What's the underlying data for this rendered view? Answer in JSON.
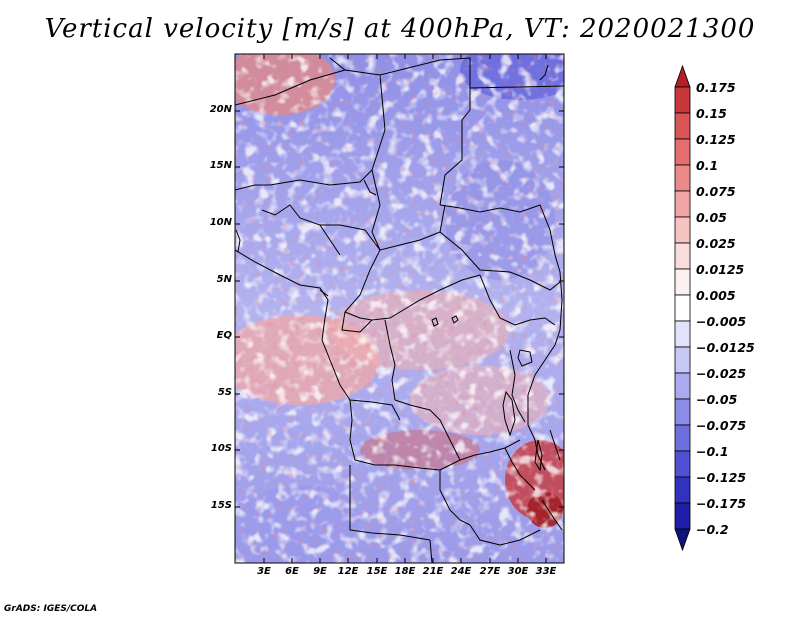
{
  "title": "Vertical velocity [m/s] at 400hPa, VT: 2020021300",
  "map": {
    "lat_labels": [
      "20N",
      "15N",
      "10N",
      "5N",
      "EQ",
      "5S",
      "10S",
      "15S"
    ],
    "lon_labels": [
      "3E",
      "6E",
      "9E",
      "12E",
      "15E",
      "18E",
      "21E",
      "24E",
      "27E",
      "30E",
      "33E"
    ]
  },
  "colorbar": {
    "labels": [
      "0.175",
      "0.15",
      "0.125",
      "0.1",
      "0.075",
      "0.05",
      "0.025",
      "0.0125",
      "0.005",
      "−0.005",
      "−0.0125",
      "−0.025",
      "−0.05",
      "−0.075",
      "−0.1",
      "−0.125",
      "−0.175",
      "−0.2"
    ],
    "colors": [
      "#b41e28",
      "#c8373c",
      "#d75555",
      "#e46e6e",
      "#ec8a8a",
      "#f2a5a5",
      "#f7c3c3",
      "#fbdcdc",
      "#fdf0f0",
      "#ffffff",
      "#e2e2fb",
      "#c8c8f6",
      "#aaaaf0",
      "#8c8ce8",
      "#6e6ede",
      "#5050d2",
      "#3232c0",
      "#1e1ea8",
      "#12127f"
    ]
  },
  "footer": "GrADS: IGES/COLA"
}
